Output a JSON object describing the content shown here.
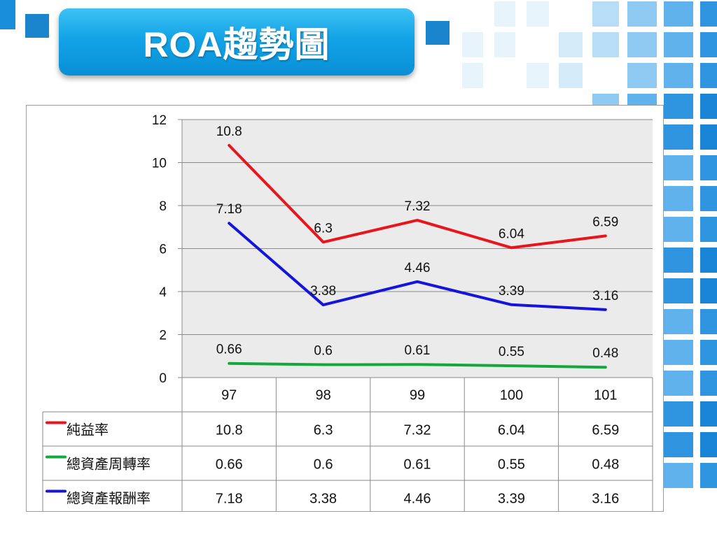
{
  "title": "ROA趨勢圖",
  "colors": {
    "accent": "#0a9ae0",
    "plot_bg": "#ebebeb",
    "net_margin": "#e8161c",
    "asset_turnover": "#14a83c",
    "roa": "#1414dc"
  },
  "chart_data": {
    "type": "line",
    "categories": [
      "97",
      "98",
      "99",
      "100",
      "101"
    ],
    "ylim": [
      0,
      12
    ],
    "yticks": [
      0,
      2,
      4,
      6,
      8,
      10,
      12
    ],
    "grid": true,
    "legend_placement": "data-table",
    "series": [
      {
        "name": "純益率",
        "color": "#e8161c",
        "values": [
          10.8,
          6.3,
          7.32,
          6.04,
          6.59
        ],
        "labels": [
          "10.8",
          "6.3",
          "7.32",
          "6.04",
          "6.59"
        ]
      },
      {
        "name": "總資產周轉率",
        "color": "#14a83c",
        "values": [
          0.66,
          0.6,
          0.61,
          0.55,
          0.48
        ],
        "labels": [
          "0.66",
          "0.6",
          "0.61",
          "0.55",
          "0.48"
        ]
      },
      {
        "name": "總資產報酬率",
        "color": "#1414dc",
        "values": [
          7.18,
          3.38,
          4.46,
          3.39,
          3.16
        ],
        "labels": [
          "7.18",
          "3.38",
          "4.46",
          "3.39",
          "3.16"
        ]
      }
    ]
  }
}
